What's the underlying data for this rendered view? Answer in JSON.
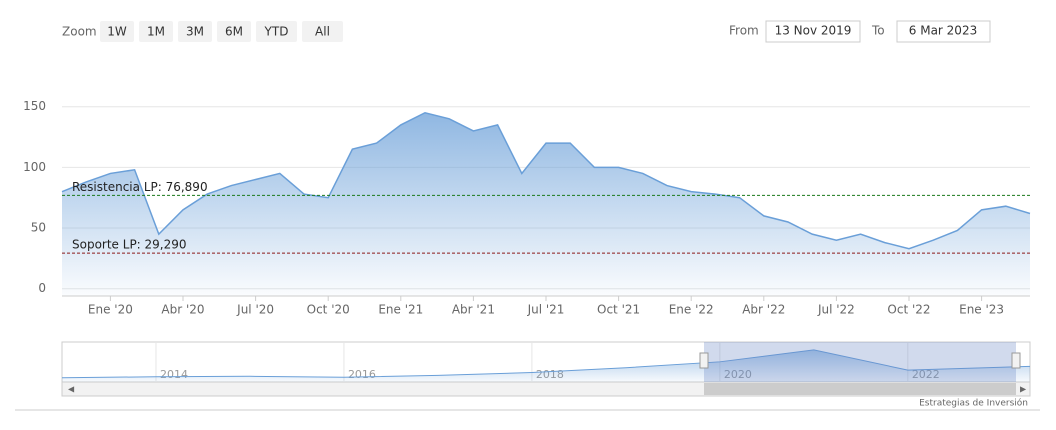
{
  "range_selector": {
    "zoom_label": "Zoom",
    "buttons": [
      "1W",
      "1M",
      "3M",
      "6M",
      "YTD",
      "All"
    ],
    "from_label": "From",
    "from": "13 Nov 2019",
    "to_label": "To",
    "to": "6 Mar 2023"
  },
  "chart_data": {
    "type": "area",
    "color": "#6a9fd8",
    "x": [
      "2019-11",
      "2019-12",
      "2020-01",
      "2020-02",
      "2020-03",
      "2020-04",
      "2020-05",
      "2020-06",
      "2020-07",
      "2020-08",
      "2020-09",
      "2020-10",
      "2020-11",
      "2020-12",
      "2021-01",
      "2021-02",
      "2021-03",
      "2021-04",
      "2021-05",
      "2021-06",
      "2021-07",
      "2021-08",
      "2021-09",
      "2021-10",
      "2021-11",
      "2021-12",
      "2022-01",
      "2022-02",
      "2022-03",
      "2022-04",
      "2022-05",
      "2022-06",
      "2022-07",
      "2022-08",
      "2022-09",
      "2022-10",
      "2022-11",
      "2022-12",
      "2023-01",
      "2023-02",
      "2023-03"
    ],
    "values": [
      80,
      88,
      95,
      98,
      45,
      65,
      78,
      85,
      90,
      95,
      78,
      75,
      115,
      120,
      135,
      145,
      140,
      130,
      135,
      95,
      120,
      120,
      100,
      100,
      95,
      85,
      80,
      78,
      75,
      60,
      55,
      45,
      40,
      45,
      38,
      33,
      40,
      48,
      65,
      68,
      62
    ],
    "xlim": [
      "2019-11",
      "2023-03"
    ],
    "xticks": [
      {
        "value": "2020-01",
        "label": "Ene '20"
      },
      {
        "value": "2020-04",
        "label": "Abr '20"
      },
      {
        "value": "2020-07",
        "label": "Jul '20"
      },
      {
        "value": "2020-10",
        "label": "Oct '20"
      },
      {
        "value": "2021-01",
        "label": "Ene '21"
      },
      {
        "value": "2021-04",
        "label": "Abr '21"
      },
      {
        "value": "2021-07",
        "label": "Jul '21"
      },
      {
        "value": "2021-10",
        "label": "Oct '21"
      },
      {
        "value": "2022-01",
        "label": "Ene '22"
      },
      {
        "value": "2022-04",
        "label": "Abr '22"
      },
      {
        "value": "2022-07",
        "label": "Jul '22"
      },
      {
        "value": "2022-10",
        "label": "Oct '22"
      },
      {
        "value": "2023-01",
        "label": "Ene '23"
      }
    ],
    "ylim": [
      -6,
      172
    ],
    "yticks": [
      0,
      50,
      100,
      150
    ],
    "grid": true,
    "levels": [
      {
        "label": "Resistencia LP: 76,890",
        "value": 76.89,
        "color": "#1b7a1b"
      },
      {
        "label": "Soporte LP: 29,290",
        "value": 29.29,
        "color": "#8b1a1a"
      }
    ],
    "navigator": {
      "x": [
        2013,
        2014,
        2015,
        2016,
        2017,
        2018,
        2019,
        2020,
        2021,
        2022,
        2023,
        2023.3
      ],
      "values": [
        18,
        22,
        24,
        20,
        28,
        40,
        60,
        85,
        135,
        50,
        62,
        66
      ],
      "xlim": [
        2013,
        2023.3
      ],
      "ylim": [
        0,
        160
      ],
      "xticks": [
        2014,
        2016,
        2018,
        2020,
        2022
      ]
    }
  },
  "credits": "Estrategias de Inversión"
}
